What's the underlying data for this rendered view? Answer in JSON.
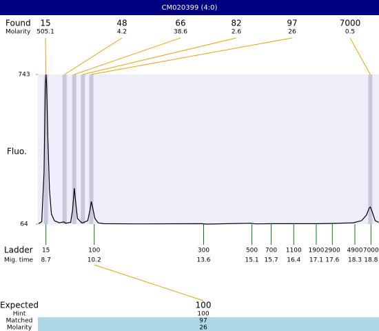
{
  "chart_data": {
    "type": "line",
    "title": "CM020399 (4:0)",
    "y_label": "Fluo.",
    "color": "#000000",
    "x": [
      8.47,
      8.57,
      8.64,
      8.68,
      8.7,
      8.72,
      8.76,
      8.81,
      8.87,
      8.96,
      9.11,
      9.26,
      9.32,
      9.47,
      9.53,
      9.58,
      9.62,
      9.68,
      9.81,
      9.88,
      10.0,
      10.07,
      10.11,
      10.15,
      10.22,
      10.32,
      10.49,
      11.56,
      13.55,
      13.7,
      15.07,
      15.2,
      15.71,
      16.41,
      17.1,
      17.61,
      18.25,
      18.51,
      18.66,
      18.74,
      18.78,
      18.84,
      18.93,
      19.04
    ],
    "values": [
      66,
      75,
      300,
      680,
      743,
      700,
      450,
      220,
      110,
      80,
      70,
      74,
      68,
      72,
      130,
      227,
      170,
      90,
      70,
      72,
      80,
      130,
      167,
      140,
      90,
      70,
      66,
      65,
      66,
      64,
      68,
      65,
      66,
      66,
      66,
      67,
      70,
      80,
      105,
      135,
      142,
      120,
      80,
      72
    ],
    "xlim": [
      8.45,
      19.05
    ],
    "ylim": [
      64,
      743
    ],
    "yticks": [
      64,
      743
    ],
    "found": {
      "label": "Found",
      "molarity_label": "Molarity",
      "sizes": [
        15,
        48,
        66,
        82,
        97,
        7000
      ],
      "molarities": [
        505.1,
        4.2,
        38.6,
        2.6,
        26,
        0.5
      ],
      "times": [
        8.7,
        9.28,
        9.58,
        9.85,
        10.11,
        18.78
      ]
    },
    "ladder": {
      "label": "Ladder",
      "time_label": "Mig. time",
      "sizes": [
        15,
        100,
        300,
        500,
        700,
        1100,
        1900,
        2900,
        4900,
        7000
      ],
      "times": [
        8.7,
        10.2,
        13.6,
        15.1,
        15.7,
        16.4,
        17.1,
        17.6,
        18.3,
        18.8
      ]
    },
    "expected": {
      "label": "Expected",
      "value": 100,
      "hint_label": "Hint",
      "hint": 100,
      "matched_label": "Matched",
      "matched": 97,
      "molarity_label": "Molarity",
      "molarity": 26
    }
  }
}
